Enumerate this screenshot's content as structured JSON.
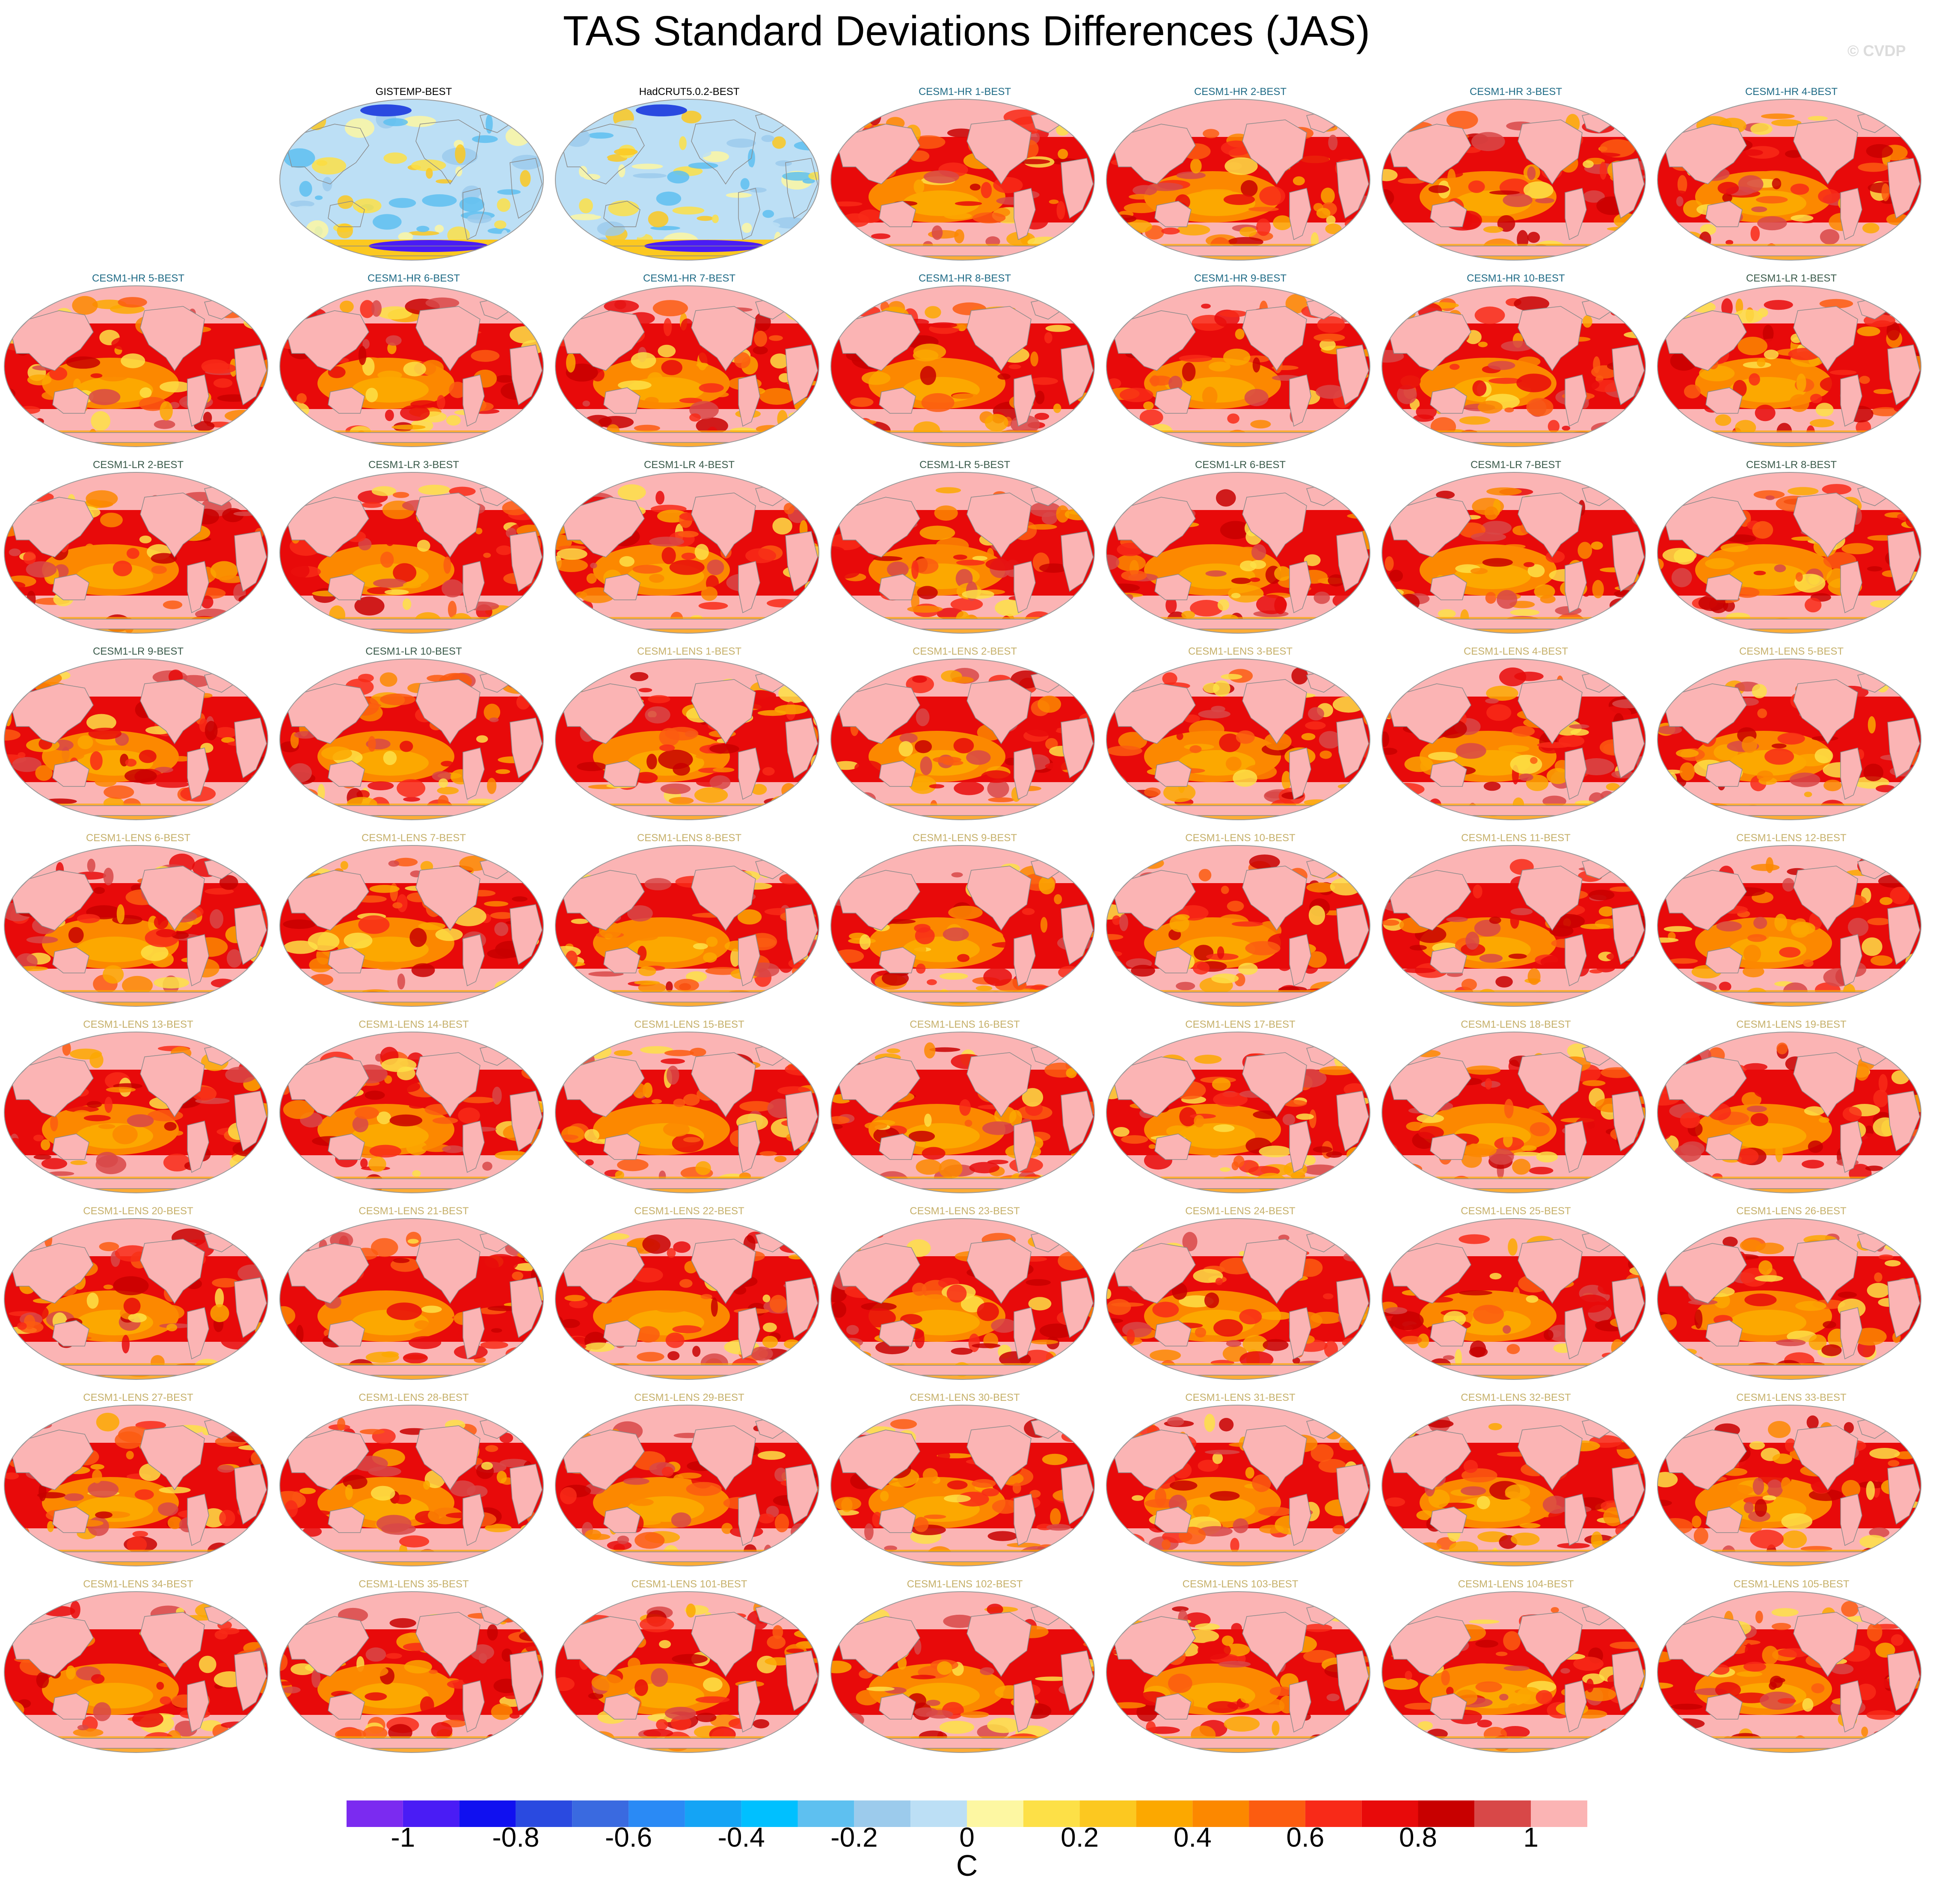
{
  "title": "TAS Standard Deviations Differences (JAS)",
  "watermark": "© CVDP",
  "colors": {
    "obs_label": "#000000",
    "hr_label": "#1f6b86",
    "lr_label": "#3a5a4a",
    "lens_label": "#c6b06a",
    "coast": "#8a8a8a"
  },
  "chart_data": {
    "type": "heatmap",
    "panel_type": "global map, Robinson projection",
    "panels": [
      {
        "label": "GISTEMP-BEST",
        "group": "obs"
      },
      {
        "label": "HadCRUT5.0.2-BEST",
        "group": "obs"
      },
      {
        "label": "CESM1-HR 1-BEST",
        "group": "hr"
      },
      {
        "label": "CESM1-HR 2-BEST",
        "group": "hr"
      },
      {
        "label": "CESM1-HR 3-BEST",
        "group": "hr"
      },
      {
        "label": "CESM1-HR 4-BEST",
        "group": "hr"
      },
      {
        "label": "CESM1-HR 5-BEST",
        "group": "hr"
      },
      {
        "label": "CESM1-HR 6-BEST",
        "group": "hr"
      },
      {
        "label": "CESM1-HR 7-BEST",
        "group": "hr"
      },
      {
        "label": "CESM1-HR 8-BEST",
        "group": "hr"
      },
      {
        "label": "CESM1-HR 9-BEST",
        "group": "hr"
      },
      {
        "label": "CESM1-HR 10-BEST",
        "group": "hr"
      },
      {
        "label": "CESM1-LR 1-BEST",
        "group": "lr"
      },
      {
        "label": "CESM1-LR 2-BEST",
        "group": "lr"
      },
      {
        "label": "CESM1-LR 3-BEST",
        "group": "lr"
      },
      {
        "label": "CESM1-LR 4-BEST",
        "group": "lr"
      },
      {
        "label": "CESM1-LR 5-BEST",
        "group": "lr"
      },
      {
        "label": "CESM1-LR 6-BEST",
        "group": "lr"
      },
      {
        "label": "CESM1-LR 7-BEST",
        "group": "lr"
      },
      {
        "label": "CESM1-LR 8-BEST",
        "group": "lr"
      },
      {
        "label": "CESM1-LR 9-BEST",
        "group": "lr"
      },
      {
        "label": "CESM1-LR 10-BEST",
        "group": "lr"
      },
      {
        "label": "CESM1-LENS 1-BEST",
        "group": "lens"
      },
      {
        "label": "CESM1-LENS 2-BEST",
        "group": "lens"
      },
      {
        "label": "CESM1-LENS 3-BEST",
        "group": "lens"
      },
      {
        "label": "CESM1-LENS 4-BEST",
        "group": "lens"
      },
      {
        "label": "CESM1-LENS 5-BEST",
        "group": "lens"
      },
      {
        "label": "CESM1-LENS 6-BEST",
        "group": "lens"
      },
      {
        "label": "CESM1-LENS 7-BEST",
        "group": "lens"
      },
      {
        "label": "CESM1-LENS 8-BEST",
        "group": "lens"
      },
      {
        "label": "CESM1-LENS 9-BEST",
        "group": "lens"
      },
      {
        "label": "CESM1-LENS 10-BEST",
        "group": "lens"
      },
      {
        "label": "CESM1-LENS 11-BEST",
        "group": "lens"
      },
      {
        "label": "CESM1-LENS 12-BEST",
        "group": "lens"
      },
      {
        "label": "CESM1-LENS 13-BEST",
        "group": "lens"
      },
      {
        "label": "CESM1-LENS 14-BEST",
        "group": "lens"
      },
      {
        "label": "CESM1-LENS 15-BEST",
        "group": "lens"
      },
      {
        "label": "CESM1-LENS 16-BEST",
        "group": "lens"
      },
      {
        "label": "CESM1-LENS 17-BEST",
        "group": "lens"
      },
      {
        "label": "CESM1-LENS 18-BEST",
        "group": "lens"
      },
      {
        "label": "CESM1-LENS 19-BEST",
        "group": "lens"
      },
      {
        "label": "CESM1-LENS 20-BEST",
        "group": "lens"
      },
      {
        "label": "CESM1-LENS 21-BEST",
        "group": "lens"
      },
      {
        "label": "CESM1-LENS 22-BEST",
        "group": "lens"
      },
      {
        "label": "CESM1-LENS 23-BEST",
        "group": "lens"
      },
      {
        "label": "CESM1-LENS 24-BEST",
        "group": "lens"
      },
      {
        "label": "CESM1-LENS 25-BEST",
        "group": "lens"
      },
      {
        "label": "CESM1-LENS 26-BEST",
        "group": "lens"
      },
      {
        "label": "CESM1-LENS 27-BEST",
        "group": "lens"
      },
      {
        "label": "CESM1-LENS 28-BEST",
        "group": "lens"
      },
      {
        "label": "CESM1-LENS 29-BEST",
        "group": "lens"
      },
      {
        "label": "CESM1-LENS 30-BEST",
        "group": "lens"
      },
      {
        "label": "CESM1-LENS 31-BEST",
        "group": "lens"
      },
      {
        "label": "CESM1-LENS 32-BEST",
        "group": "lens"
      },
      {
        "label": "CESM1-LENS 33-BEST",
        "group": "lens"
      },
      {
        "label": "CESM1-LENS 34-BEST",
        "group": "lens"
      },
      {
        "label": "CESM1-LENS 35-BEST",
        "group": "lens"
      },
      {
        "label": "CESM1-LENS 101-BEST",
        "group": "lens"
      },
      {
        "label": "CESM1-LENS 102-BEST",
        "group": "lens"
      },
      {
        "label": "CESM1-LENS 103-BEST",
        "group": "lens"
      },
      {
        "label": "CESM1-LENS 104-BEST",
        "group": "lens"
      },
      {
        "label": "CESM1-LENS 105-BEST",
        "group": "lens"
      }
    ],
    "colorbar": {
      "unit": "C",
      "levels": [
        -1.1,
        -1,
        -0.9,
        -0.8,
        -0.7,
        -0.6,
        -0.5,
        -0.4,
        -0.3,
        -0.2,
        -0.1,
        0,
        0.1,
        0.2,
        0.3,
        0.4,
        0.5,
        0.6,
        0.7,
        0.8,
        0.9,
        1,
        1.1
      ],
      "colors": [
        "#7b2bf0",
        "#4a1cf5",
        "#1010f0",
        "#2a4ae0",
        "#3a6ae0",
        "#2a8af5",
        "#14a4f5",
        "#00c0ff",
        "#5ec0f0",
        "#9ccbec",
        "#bcdff5",
        "#fdf7a2",
        "#fde047",
        "#fcc820",
        "#fca800",
        "#fc8800",
        "#fc5c10",
        "#f82a18",
        "#e80a0a",
        "#c80000",
        "#d84848",
        "#fbb4b4"
      ],
      "tick_values": [
        -1,
        -0.8,
        -0.6,
        -0.4,
        -0.2,
        0,
        0.2,
        0.4,
        0.6,
        0.8,
        1
      ],
      "tick_labels": [
        "-1",
        "-0.8",
        "-0.6",
        "-0.4",
        "-0.2",
        "0",
        "0.2",
        "0.4",
        "0.6",
        "0.8",
        "1"
      ]
    }
  }
}
